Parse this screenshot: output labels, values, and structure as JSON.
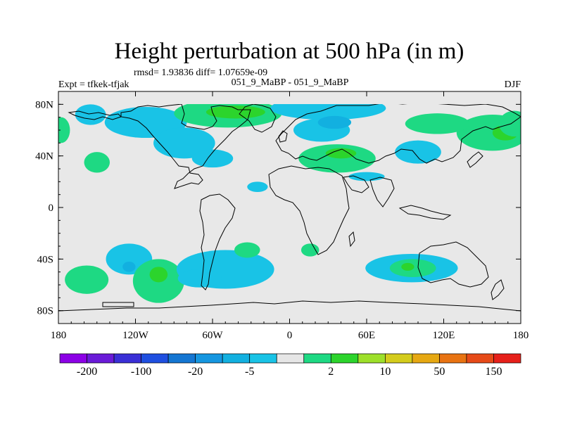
{
  "title": "Height perturbation at 500 hPa (in m)",
  "stats": "rmsd= 1.93836 diff= 1.07659e-09",
  "comparison": "051_9_MaBP - 051_9_MaBP",
  "experiment": "Expt = tfkek-tfjak",
  "season": "DJF",
  "map": {
    "projection": "cylindrical-equidistant",
    "lon_range": [
      -180,
      180
    ],
    "lat_range": [
      -90,
      90
    ],
    "background_color": "#e8e8e8",
    "x_ticks": [
      {
        "value": -180,
        "label": "180"
      },
      {
        "value": -120,
        "label": "120W"
      },
      {
        "value": -60,
        "label": "60W"
      },
      {
        "value": 0,
        "label": "0"
      },
      {
        "value": 60,
        "label": "60E"
      },
      {
        "value": 120,
        "label": "120E"
      },
      {
        "value": 180,
        "label": "180"
      }
    ],
    "y_ticks": [
      {
        "value": 80,
        "label": "80N"
      },
      {
        "value": 40,
        "label": "40N"
      },
      {
        "value": 0,
        "label": "0"
      },
      {
        "value": -40,
        "label": "40S"
      },
      {
        "value": -80,
        "label": "80S"
      }
    ]
  },
  "colorbar": {
    "colors": [
      "#8c00e6",
      "#6a1bd8",
      "#3a2fd6",
      "#1f4fe0",
      "#1476d2",
      "#1596e0",
      "#12b0e0",
      "#19c3e6",
      "#e6e6e6",
      "#1ed983",
      "#2cd42c",
      "#9de02a",
      "#d4cc1c",
      "#e6a812",
      "#e87312",
      "#e64a18",
      "#e6201a"
    ],
    "labels": [
      "-200",
      "-100",
      "-20",
      "-5",
      "2",
      "10",
      "50",
      "150"
    ]
  },
  "anomalies": [
    {
      "sign": "neg",
      "level": 1,
      "lon": -112,
      "lat": 66,
      "rx": 32,
      "ry": 12
    },
    {
      "sign": "neg",
      "level": 1,
      "lon": -82,
      "lat": 50,
      "rx": 24,
      "ry": 12
    },
    {
      "sign": "neg",
      "level": 1,
      "lon": -60,
      "lat": 38,
      "rx": 16,
      "ry": 7
    },
    {
      "sign": "neg",
      "level": 1,
      "lon": -155,
      "lat": 72,
      "rx": 12,
      "ry": 8
    },
    {
      "sign": "pos",
      "level": 1,
      "lon": -48,
      "lat": 73,
      "rx": 42,
      "ry": 11
    },
    {
      "sign": "pos",
      "level": 2,
      "lon": -42,
      "lat": 74,
      "rx": 23,
      "ry": 5
    },
    {
      "sign": "neg",
      "level": 1,
      "lon": 30,
      "lat": 77,
      "rx": 45,
      "ry": 9
    },
    {
      "sign": "neg",
      "level": 1,
      "lon": 25,
      "lat": 60,
      "rx": 22,
      "ry": 9
    },
    {
      "sign": "neg",
      "level": 2,
      "lon": 35,
      "lat": 66,
      "rx": 13,
      "ry": 5
    },
    {
      "sign": "pos",
      "level": 1,
      "lon": 37,
      "lat": 38,
      "rx": 30,
      "ry": 11
    },
    {
      "sign": "pos",
      "level": 2,
      "lon": 40,
      "lat": 42,
      "rx": 12,
      "ry": 4
    },
    {
      "sign": "neg",
      "level": 1,
      "lon": 60,
      "lat": 24,
      "rx": 14,
      "ry": 3.5
    },
    {
      "sign": "neg",
      "level": 1,
      "lon": -25,
      "lat": 16,
      "rx": 8,
      "ry": 4
    },
    {
      "sign": "neg",
      "level": 1,
      "lon": 100,
      "lat": 43,
      "rx": 18,
      "ry": 9
    },
    {
      "sign": "pos",
      "level": 1,
      "lon": 158,
      "lat": 58,
      "rx": 28,
      "ry": 14
    },
    {
      "sign": "pos",
      "level": 1,
      "lon": 115,
      "lat": 65,
      "rx": 25,
      "ry": 8
    },
    {
      "sign": "pos",
      "level": 2,
      "lon": 168,
      "lat": 58,
      "rx": 10,
      "ry": 6
    },
    {
      "sign": "pos",
      "level": 1,
      "lon": 175,
      "lat": 65,
      "rx": 12,
      "ry": 10
    },
    {
      "sign": "pos",
      "level": 1,
      "lon": -178,
      "lat": 60,
      "rx": 7,
      "ry": 10
    },
    {
      "sign": "pos",
      "level": 1,
      "lon": -150,
      "lat": 35,
      "rx": 10,
      "ry": 8
    },
    {
      "sign": "neg",
      "level": 1,
      "lon": -125,
      "lat": -40,
      "rx": 18,
      "ry": 12
    },
    {
      "sign": "neg",
      "level": 2,
      "lon": -125,
      "lat": -46,
      "rx": 5,
      "ry": 4
    },
    {
      "sign": "pos",
      "level": 1,
      "lon": -158,
      "lat": -56,
      "rx": 17,
      "ry": 11
    },
    {
      "sign": "pos",
      "level": 1,
      "lon": -102,
      "lat": -57,
      "rx": 20,
      "ry": 17
    },
    {
      "sign": "pos",
      "level": 2,
      "lon": -102,
      "lat": -52,
      "rx": 7,
      "ry": 6
    },
    {
      "sign": "neg",
      "level": 1,
      "lon": -50,
      "lat": -48,
      "rx": 38,
      "ry": 15
    },
    {
      "sign": "neg",
      "level": 1,
      "lon": -70,
      "lat": -55,
      "rx": 17,
      "ry": 7
    },
    {
      "sign": "pos",
      "level": 1,
      "lon": -33,
      "lat": -33,
      "rx": 10,
      "ry": 6
    },
    {
      "sign": "pos",
      "level": 1,
      "lon": 16,
      "lat": -33,
      "rx": 7,
      "ry": 5
    },
    {
      "sign": "neg",
      "level": 1,
      "lon": 95,
      "lat": -47,
      "rx": 36,
      "ry": 11
    },
    {
      "sign": "pos",
      "level": 1,
      "lon": 96,
      "lat": -47,
      "rx": 18,
      "ry": 7
    },
    {
      "sign": "pos",
      "level": 2,
      "lon": 92,
      "lat": -46,
      "rx": 5,
      "ry": 3
    }
  ]
}
